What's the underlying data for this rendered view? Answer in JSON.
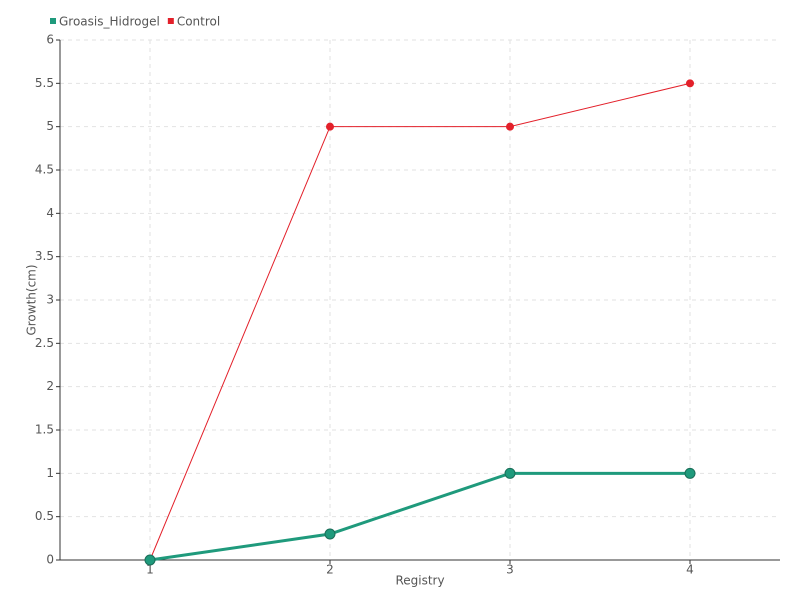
{
  "chart_data": {
    "type": "line",
    "xlabel": "Registry",
    "ylabel": "Growth(cm)",
    "x": [
      1,
      2,
      3,
      4
    ],
    "series": [
      {
        "name": "Groasis_Hidrogel",
        "color": "#1f9a7c",
        "values": [
          0,
          0.3,
          1,
          1
        ]
      },
      {
        "name": "Control",
        "color": "#e3202a",
        "values": [
          0,
          5,
          5,
          5.5
        ]
      }
    ],
    "xlim": [
      0.5,
      4.5
    ],
    "xticks": [
      1,
      2,
      3,
      4
    ],
    "ylim": [
      0,
      6
    ],
    "yticks": [
      0,
      0.5,
      1,
      1.5,
      2,
      2.5,
      3,
      3.5,
      4,
      4.5,
      5,
      5.5,
      6
    ],
    "grid": true,
    "legend": "top-left"
  }
}
